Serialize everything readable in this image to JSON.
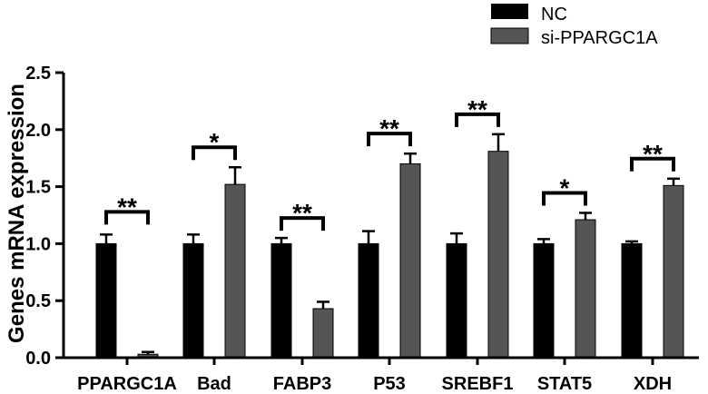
{
  "chart_data": {
    "type": "bar",
    "title": "",
    "xlabel": "",
    "ylabel": "Genes mRNA expression",
    "ylim": [
      0,
      2.5
    ],
    "yticks": [
      "0.0",
      "0.5",
      "1.0",
      "1.5",
      "2.0",
      "2.5"
    ],
    "categories": [
      "PPARGC1A",
      "Bad",
      "FABP3",
      "P53",
      "SREBF1",
      "STAT5",
      "XDH"
    ],
    "series": [
      {
        "name": "NC",
        "color": "#000000",
        "values": [
          1.0,
          1.0,
          1.0,
          1.0,
          1.0,
          1.0,
          1.0
        ],
        "errors": [
          0.08,
          0.08,
          0.05,
          0.11,
          0.09,
          0.04,
          0.02
        ]
      },
      {
        "name": "si-PPARGC1A",
        "color": "#555555",
        "values": [
          0.03,
          1.52,
          0.43,
          1.7,
          1.81,
          1.21,
          1.51
        ],
        "errors": [
          0.02,
          0.15,
          0.06,
          0.09,
          0.15,
          0.06,
          0.06
        ]
      }
    ],
    "significance": [
      "**",
      "*",
      "**",
      "**",
      "**",
      "*",
      "**"
    ],
    "legend": {
      "position": "top-right",
      "entries": [
        "NC",
        "si-PPARGC1A"
      ]
    }
  }
}
